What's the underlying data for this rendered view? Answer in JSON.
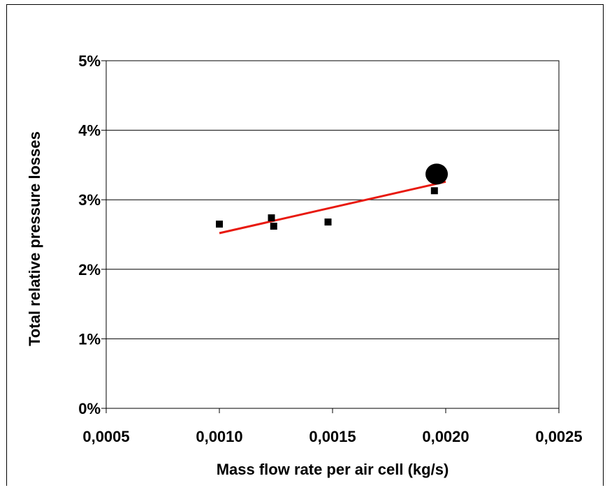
{
  "chart_data": {
    "type": "scatter",
    "title": "",
    "xlabel": "Mass flow rate per air cell (kg/s)",
    "ylabel": "Total relative pressure losses",
    "xlim": [
      0.0005,
      0.0025
    ],
    "ylim": [
      0,
      0.05
    ],
    "x_ticks": [
      0.0005,
      0.001,
      0.0015,
      0.002,
      0.0025
    ],
    "x_tick_labels": [
      "0,0005",
      "0,0010",
      "0,0015",
      "0,0020",
      "0,0025"
    ],
    "y_ticks": [
      0,
      0.01,
      0.02,
      0.03,
      0.04,
      0.05
    ],
    "y_tick_labels": [
      "0%",
      "1%",
      "2%",
      "3%",
      "4%",
      "5%"
    ],
    "grid": "horizontal",
    "series": [
      {
        "marker": "square",
        "color": "#000000",
        "points": [
          {
            "x": 0.001,
            "y": 0.0265
          },
          {
            "x": 0.00123,
            "y": 0.0274
          },
          {
            "x": 0.00124,
            "y": 0.0262
          },
          {
            "x": 0.00148,
            "y": 0.0268
          },
          {
            "x": 0.00195,
            "y": 0.0313
          }
        ]
      },
      {
        "marker": "circle",
        "color": "#000000",
        "points": [
          {
            "x": 0.00196,
            "y": 0.0337
          }
        ]
      }
    ],
    "trendline": {
      "color": "#e8190f",
      "points": [
        {
          "x": 0.001,
          "y": 0.0252
        },
        {
          "x": 0.002,
          "y": 0.0326
        }
      ]
    }
  }
}
